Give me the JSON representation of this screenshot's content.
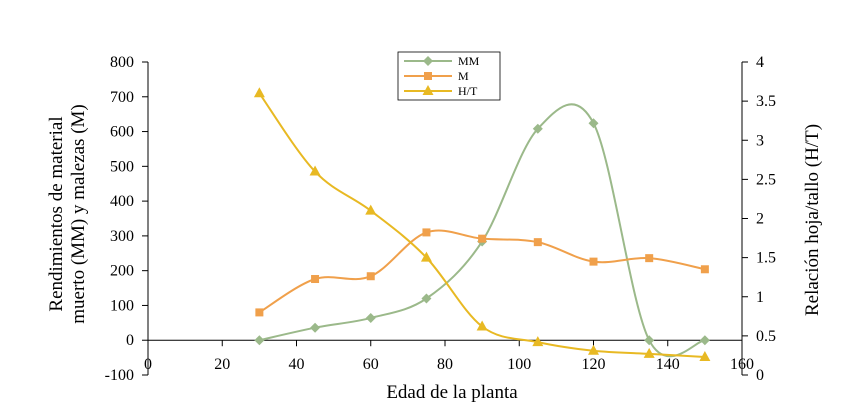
{
  "chart_data": {
    "type": "line",
    "xlabel": "Edad de la planta",
    "ylabel_lines": [
      "Rendimientos de material",
      "muerto (MM) y malezas (M)"
    ],
    "y2label": "Relación hoja/tallo (H/T)",
    "xlim": [
      0,
      160
    ],
    "ylim": [
      -100,
      800
    ],
    "y2lim": [
      0,
      4
    ],
    "x_ticks": [
      0,
      20,
      40,
      60,
      80,
      100,
      120,
      140,
      160
    ],
    "y_ticks": [
      -100,
      0,
      100,
      200,
      300,
      400,
      500,
      600,
      700,
      800
    ],
    "y2_ticks": [
      0,
      0.5,
      1,
      1.5,
      2,
      2.5,
      3,
      3.5,
      4
    ],
    "x_tick_labels": [
      "0",
      "20",
      "40",
      "60",
      "80",
      "100",
      "120",
      "140",
      "160"
    ],
    "y_tick_labels": [
      "-100",
      "0",
      "100",
      "200",
      "300",
      "400",
      "500",
      "600",
      "700",
      "800"
    ],
    "y2_tick_labels": [
      "0",
      "0.5",
      "1",
      "1.5",
      "2",
      "2.5",
      "3",
      "3.5",
      "4"
    ],
    "legend_position": "top-center",
    "grid": false,
    "series": [
      {
        "name": "MM",
        "axis": "left",
        "marker": "diamond",
        "color": "#9bb98a",
        "x": [
          30,
          45,
          60,
          75,
          90,
          105,
          120,
          135,
          150
        ],
        "y": [
          0,
          36,
          64,
          120,
          284,
          608,
          624,
          0,
          0
        ]
      },
      {
        "name": "M",
        "axis": "left",
        "marker": "square",
        "color": "#f0a04b",
        "x": [
          30,
          45,
          60,
          75,
          90,
          105,
          120,
          135,
          150
        ],
        "y": [
          80,
          176,
          184,
          310,
          292,
          282,
          226,
          236,
          204
        ]
      },
      {
        "name": "H/T",
        "axis": "right",
        "marker": "triangle",
        "color": "#e8b923",
        "x": [
          30,
          45,
          60,
          75,
          90,
          105,
          120,
          135,
          150
        ],
        "y": [
          3.6,
          2.6,
          2.1,
          1.5,
          0.62,
          0.42,
          0.31,
          0.27,
          0.23
        ]
      }
    ]
  }
}
